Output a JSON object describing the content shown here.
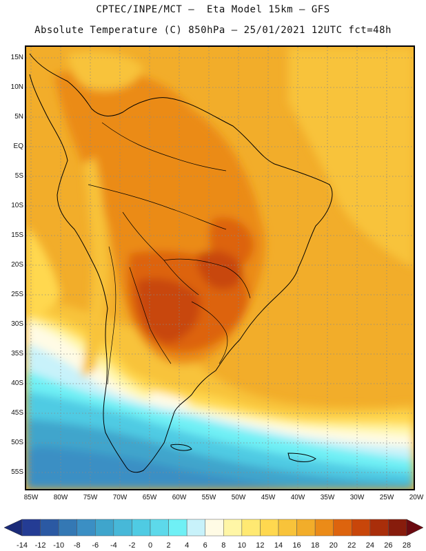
{
  "title": {
    "line1": "CPTEC/INPE/MCT –  Eta Model 15km – GFS",
    "line2": "Absolute Temperature (C) 850hPa – 25/01/2021 12UTC fct=48h"
  },
  "map": {
    "lat_labels": [
      "15N",
      "10N",
      "5N",
      "EQ",
      "5S",
      "10S",
      "15S",
      "20S",
      "25S",
      "30S",
      "35S",
      "40S",
      "45S",
      "50S",
      "55S"
    ],
    "lon_labels": [
      "85W",
      "80W",
      "75W",
      "70W",
      "65W",
      "60W",
      "55W",
      "50W",
      "45W",
      "40W",
      "35W",
      "30W",
      "25W",
      "20W"
    ],
    "lat_range": [
      -58,
      17
    ],
    "lon_range": [
      -86,
      -20
    ],
    "grid": "dotted",
    "variable": "Absolute Temperature (C)",
    "level": "850hPa"
  },
  "colorbar": {
    "labels": [
      "-14",
      "-12",
      "-10",
      "-8",
      "-6",
      "-4",
      "-2",
      "0",
      "2",
      "4",
      "6",
      "8",
      "10",
      "12",
      "14",
      "16",
      "18",
      "20",
      "22",
      "24",
      "26",
      "28"
    ],
    "colors": [
      "#243c94",
      "#2b59a3",
      "#3478b4",
      "#3b8fc4",
      "#3fa5cc",
      "#47b8d8",
      "#4fcbe3",
      "#5dd9ea",
      "#6ff0f5",
      "#c8f2fa",
      "#fffbe5",
      "#fff6a6",
      "#ffe972",
      "#ffd84f",
      "#f8c33a",
      "#f2ad2a",
      "#eb8b18",
      "#dd640e",
      "#c8460a",
      "#a92e0a",
      "#871c0c"
    ],
    "left_arrow_color": "#1a2a78",
    "right_arrow_color": "#6b0a10"
  }
}
